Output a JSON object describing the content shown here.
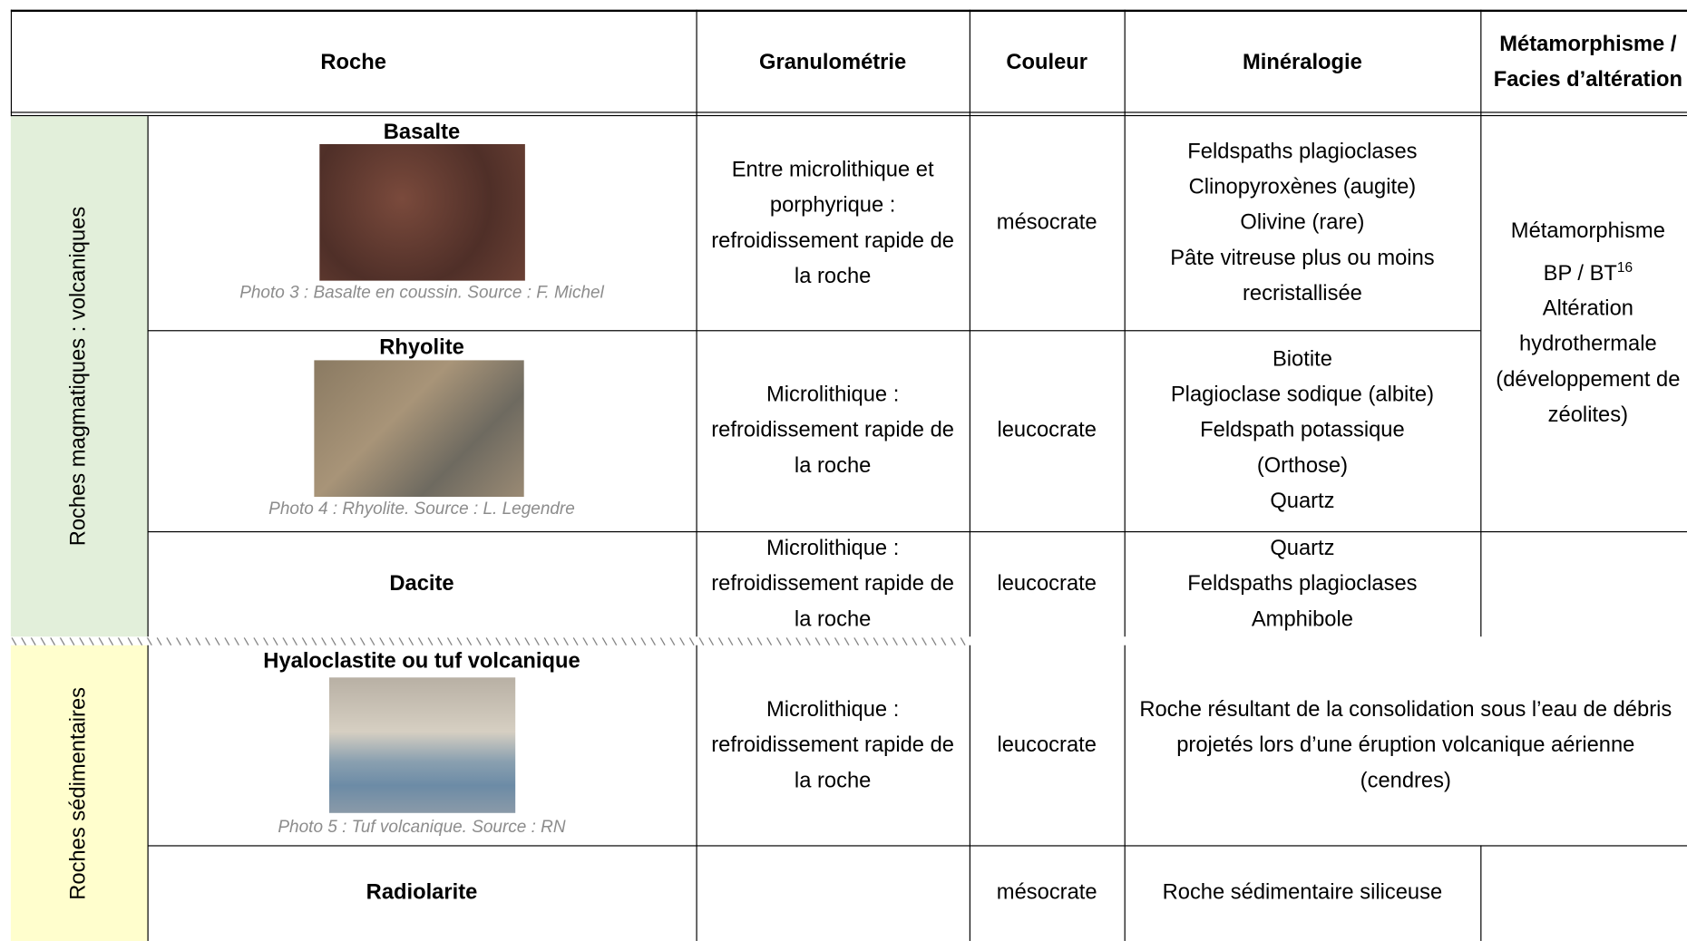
{
  "table": {
    "header": [
      "Roche",
      "Granulométrie",
      "Couleur",
      "Minéralogie",
      "Métamorphisme / Facies d’altération"
    ],
    "groups": [
      "Roches magmatiques : volcaniques",
      "Roches sédimentaires"
    ],
    "rows": [
      {
        "name": "Basalte",
        "caption": "Photo 3 : Basalte en coussin. Source : F. Michel",
        "granulometrie": "Entre microlithique et porphyrique : refroidissement rapide de la roche",
        "couleur": "mésocrate",
        "mineralogie": [
          "Feldspaths plagioclases",
          "Clinopyroxènes (augite)",
          "Olivine (rare)",
          "Pâte vitreuse plus ou moins recristallisée"
        ]
      },
      {
        "name": "Rhyolite",
        "caption": "Photo 4 : Rhyolite. Source : L. Legendre",
        "granulometrie": "Microlithique : refroidissement rapide de la roche",
        "couleur": "leucocrate",
        "mineralogie": [
          "Biotite",
          "Plagioclase sodique (albite)",
          "Feldspath potassique (Orthose)",
          "Quartz"
        ]
      },
      {
        "name": "Dacite",
        "granulometrie": "Microlithique : refroidissement rapide de la roche",
        "couleur": "leucocrate",
        "mineralogie": [
          "Quartz",
          "Feldspaths plagioclases",
          "Amphibole"
        ]
      },
      {
        "name": "Hyaloclastite ou tuf volcanique",
        "caption": "Photo 5 : Tuf volcanique. Source : RN",
        "granulometrie": "Microlithique : refroidissement rapide de la roche",
        "couleur": "leucocrate",
        "description": "Roche résultant de la consolidation sous l’eau de débris projetés lors d’une éruption volcanique aérienne (cendres)"
      },
      {
        "name": "Radiolarite",
        "couleur": "mésocrate",
        "description": "Roche sédimentaire siliceuse"
      }
    ],
    "metamorphisme": {
      "line1": "Métamorphisme",
      "line2": "BP / BT",
      "footnote": "16",
      "line3": "Altération hydrothermale (développement de zéolites)"
    }
  }
}
